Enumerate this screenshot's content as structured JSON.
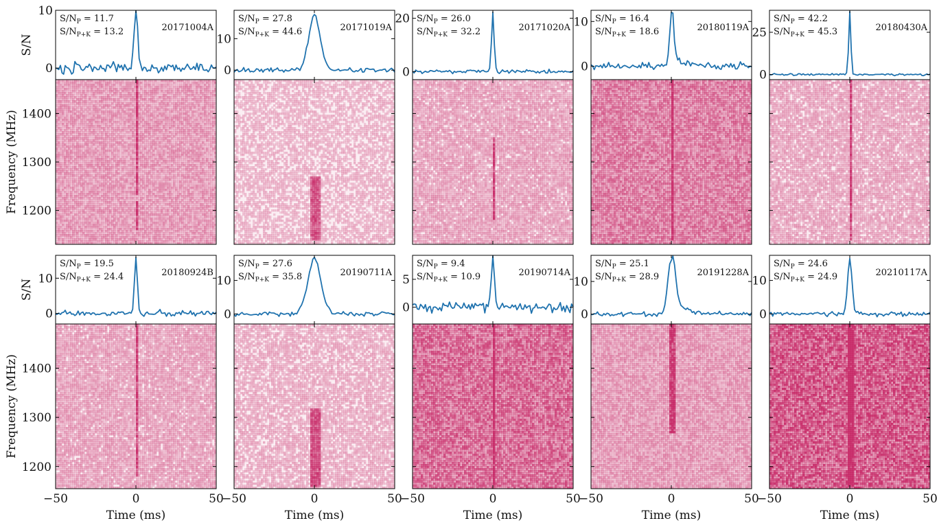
{
  "figure": {
    "ylabel_profile": "S/N",
    "ylabel_waterfall": "Frequency (MHz)",
    "xlabel": "Time (ms)",
    "x_ticks": [
      -50,
      0,
      50
    ],
    "x_tick_labels": [
      "−50",
      "0",
      "50"
    ],
    "profile_color": "#1f72ae",
    "waterfall_color": "#c2185b"
  },
  "chart_data": [
    {
      "type": "line",
      "id": "20171004A",
      "snr_p": "11.7",
      "snr_pk": "13.2",
      "x": [
        -50,
        50
      ],
      "ylim": [
        -2,
        10
      ],
      "yticks": [
        0,
        10
      ],
      "peak": 10,
      "width": 1.2,
      "noise": 1.3,
      "tail": 0,
      "freq_ticks": [
        1200,
        1300,
        1400
      ],
      "freq_range": [
        1130,
        1470
      ],
      "burst_bands": [
        [
          1230,
          1470
        ],
        [
          1160,
          1220
        ]
      ],
      "intensity": 0.35,
      "seed": 3
    },
    {
      "type": "line",
      "id": "20171019A",
      "snr_p": "27.8",
      "snr_pk": "44.6",
      "x": [
        -50,
        50
      ],
      "ylim": [
        -3,
        19
      ],
      "yticks": [
        0,
        10
      ],
      "peak": 17.5,
      "width": 3.5,
      "noise": 1.0,
      "tail": 0,
      "freq_ticks": [
        1200,
        1300,
        1400
      ],
      "freq_range": [
        1130,
        1470
      ],
      "burst_bands": [
        [
          1140,
          1270
        ]
      ],
      "intensity": 0.22,
      "seed": 5
    },
    {
      "type": "line",
      "id": "20171020A",
      "snr_p": "26.0",
      "snr_pk": "32.2",
      "x": [
        -50,
        50
      ],
      "ylim": [
        -3,
        23
      ],
      "yticks": [
        0,
        20
      ],
      "peak": 22,
      "width": 0.8,
      "noise": 0.9,
      "tail": 0,
      "freq_ticks": [
        1200,
        1300,
        1400
      ],
      "freq_range": [
        1130,
        1470
      ],
      "burst_bands": [
        [
          1180,
          1350
        ]
      ],
      "intensity": 0.3,
      "seed": 7
    },
    {
      "type": "line",
      "id": "20180119A",
      "snr_p": "16.4",
      "snr_pk": "18.6",
      "x": [
        -50,
        50
      ],
      "ylim": [
        -3,
        12.5
      ],
      "yticks": [
        0,
        10
      ],
      "peak": 12,
      "width": 1.2,
      "noise": 1.1,
      "tail": 5,
      "freq_ticks": [
        1200,
        1300,
        1400
      ],
      "freq_range": [
        1130,
        1470
      ],
      "burst_bands": [
        [
          1140,
          1470
        ]
      ],
      "intensity": 0.5,
      "seed": 9
    },
    {
      "type": "line",
      "id": "20180430A",
      "snr_p": "42.2",
      "snr_pk": "45.3",
      "x": [
        -50,
        50
      ],
      "ylim": [
        -3,
        38
      ],
      "yticks": [
        0,
        25
      ],
      "peak": 37,
      "width": 0.7,
      "noise": 0.8,
      "tail": 0,
      "freq_ticks": [
        1200,
        1300,
        1400
      ],
      "freq_range": [
        1130,
        1470
      ],
      "burst_bands": [
        [
          1140,
          1470
        ]
      ],
      "intensity": 0.28,
      "seed": 11
    },
    {
      "type": "line",
      "id": "20180924B",
      "snr_p": "19.5",
      "snr_pk": "24.4",
      "x": [
        -50,
        50
      ],
      "ylim": [
        -3,
        16.5
      ],
      "yticks": [
        0,
        10
      ],
      "peak": 16,
      "width": 0.9,
      "noise": 1.0,
      "tail": 0,
      "freq_ticks": [
        1200,
        1300,
        1400
      ],
      "freq_range": [
        1155,
        1490
      ],
      "burst_bands": [
        [
          1180,
          1490
        ]
      ],
      "intensity": 0.3,
      "seed": 13
    },
    {
      "type": "line",
      "id": "20190711A",
      "snr_p": "27.6",
      "snr_pk": "35.8",
      "x": [
        -50,
        50
      ],
      "ylim": [
        -3,
        17.5
      ],
      "yticks": [
        0,
        10
      ],
      "peak": 16.5,
      "width": 4,
      "noise": 0.9,
      "tail": 0,
      "freq_ticks": [
        1200,
        1300,
        1400
      ],
      "freq_range": [
        1155,
        1490
      ],
      "burst_bands": [
        [
          1160,
          1320
        ]
      ],
      "intensity": 0.25,
      "seed": 15
    },
    {
      "type": "line",
      "id": "20190714A",
      "snr_p": "9.4",
      "snr_pk": "10.9",
      "x": [
        -50,
        50
      ],
      "ylim": [
        -3,
        9.3
      ],
      "yticks": [
        0,
        5
      ],
      "peak": 9,
      "width": 1.0,
      "noise": 1.2,
      "tail": 0,
      "freq_ticks": [
        1200,
        1300,
        1400
      ],
      "freq_range": [
        1155,
        1490
      ],
      "burst_bands": [
        [
          1160,
          1490
        ]
      ],
      "intensity": 0.6,
      "seed": 17
    },
    {
      "type": "line",
      "id": "20191228A",
      "snr_p": "25.1",
      "snr_pk": "28.9",
      "x": [
        -50,
        50
      ],
      "ylim": [
        -3,
        18
      ],
      "yticks": [
        0,
        10
      ],
      "peak": 17,
      "width": 2.2,
      "noise": 0.9,
      "tail": 7,
      "freq_ticks": [
        1200,
        1300,
        1400
      ],
      "freq_range": [
        1155,
        1490
      ],
      "burst_bands": [
        [
          1270,
          1490
        ]
      ],
      "intensity": 0.35,
      "seed": 19
    },
    {
      "type": "line",
      "id": "20210117A",
      "snr_p": "24.6",
      "snr_pk": "24.9",
      "x": [
        -50,
        50
      ],
      "ylim": [
        -3,
        17.5
      ],
      "yticks": [
        0,
        10
      ],
      "peak": 16.5,
      "width": 1.4,
      "noise": 0.9,
      "tail": 0,
      "freq_ticks": [
        1200,
        1300,
        1400
      ],
      "freq_range": [
        1155,
        1490
      ],
      "burst_bands": [
        [
          1160,
          1490
        ]
      ],
      "intensity": 0.7,
      "seed": 21
    }
  ]
}
